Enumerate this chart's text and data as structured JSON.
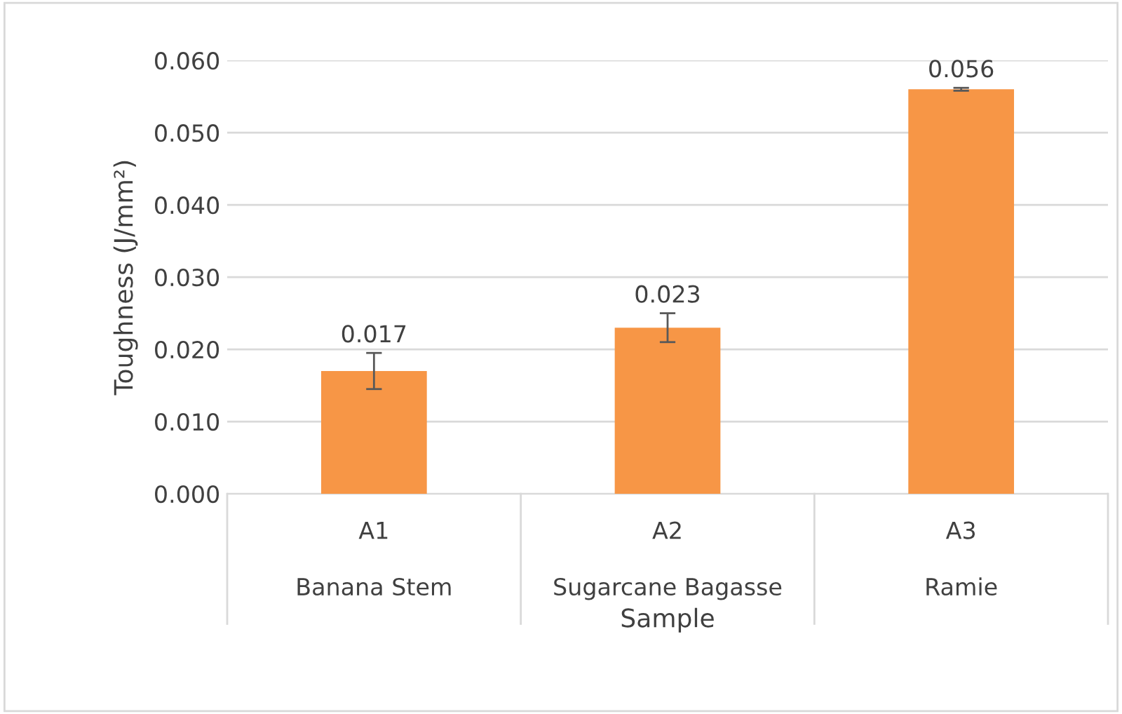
{
  "chart_data": {
    "type": "bar",
    "xlabel": "Sample",
    "ylabel": "Toughness (J/mm²)",
    "categories": [
      "A1\nBanana Stem",
      "A2\nSugarcane Bagasse",
      "A3\nRamie"
    ],
    "values": [
      0.017,
      0.023,
      0.056
    ],
    "errors": [
      0.0025,
      0.002,
      0.0002
    ],
    "color": "#f79646",
    "ylim": [
      0,
      0.06
    ],
    "yticks": [
      {
        "value": 0,
        "label": "0.000"
      },
      {
        "value": 0.01,
        "label": "0.010"
      },
      {
        "value": 0.02,
        "label": "0.020"
      },
      {
        "value": 0.03,
        "label": "0.030"
      },
      {
        "value": 0.04,
        "label": "0.040"
      },
      {
        "value": 0.05,
        "label": "0.050"
      },
      {
        "value": 0.06,
        "label": "0.060"
      }
    ],
    "grid": "y",
    "data_labels": true
  }
}
